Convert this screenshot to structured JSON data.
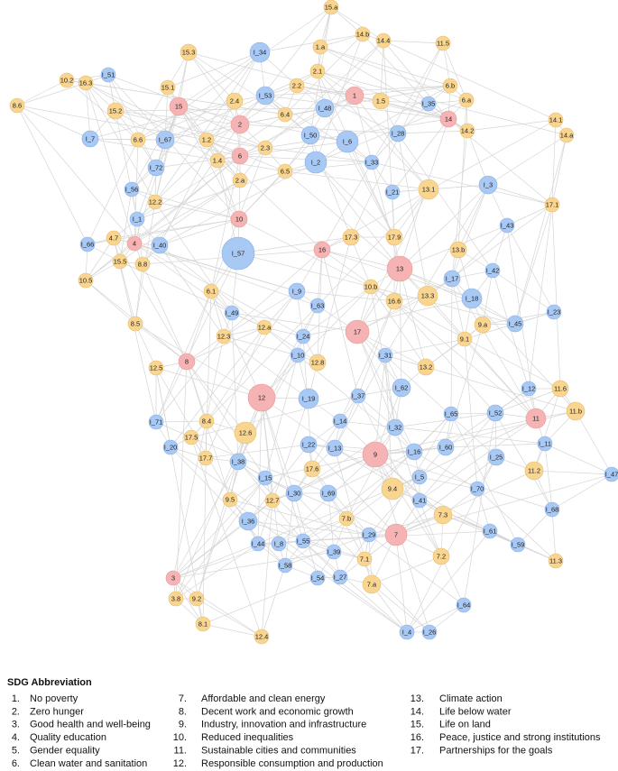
{
  "nodes": [
    {
      "label": "15.a"
    },
    {
      "label": "14.b"
    },
    {
      "label": "14.4"
    },
    {
      "label": "11.5"
    },
    {
      "label": "1.a"
    },
    {
      "label": "15.3"
    },
    {
      "label": "I_34"
    },
    {
      "label": "I_51"
    },
    {
      "label": "10.2"
    },
    {
      "label": "16.3"
    },
    {
      "label": "2.1"
    },
    {
      "label": "2.2"
    },
    {
      "label": "6.b"
    },
    {
      "label": "1"
    },
    {
      "label": "1.5"
    },
    {
      "label": "15.1"
    },
    {
      "label": "I_53"
    },
    {
      "label": "2.4"
    },
    {
      "label": "I_35"
    },
    {
      "label": "6.a"
    },
    {
      "label": "8.6"
    },
    {
      "label": "15.2"
    },
    {
      "label": "15"
    },
    {
      "label": "I_48"
    },
    {
      "label": "6.4"
    },
    {
      "label": "14"
    },
    {
      "label": "14.2"
    },
    {
      "label": "14.1"
    },
    {
      "label": "2"
    },
    {
      "label": "I_7"
    },
    {
      "label": "6.6"
    },
    {
      "label": "I_67"
    },
    {
      "label": "1.2"
    },
    {
      "label": "I_50"
    },
    {
      "label": "I_6"
    },
    {
      "label": "I_28"
    },
    {
      "label": "14.a"
    },
    {
      "label": "2.3"
    },
    {
      "label": "6"
    },
    {
      "label": "I_2"
    },
    {
      "label": "I_33"
    },
    {
      "label": "6.5"
    },
    {
      "label": "1.4"
    },
    {
      "label": "I_72"
    },
    {
      "label": "2.a"
    },
    {
      "label": "13.1"
    },
    {
      "label": "I_3"
    },
    {
      "label": "I_56"
    },
    {
      "label": "12.2"
    },
    {
      "label": "I_21"
    },
    {
      "label": "17.1"
    },
    {
      "label": "I_1"
    },
    {
      "label": "10"
    },
    {
      "label": "I_43"
    },
    {
      "label": "4.7"
    },
    {
      "label": "4"
    },
    {
      "label": "I_66"
    },
    {
      "label": "I_40"
    },
    {
      "label": "17.3"
    },
    {
      "label": "17.9"
    },
    {
      "label": "I_57"
    },
    {
      "label": "16"
    },
    {
      "label": "13.b"
    },
    {
      "label": "15.5"
    },
    {
      "label": "8.8"
    },
    {
      "label": "13"
    },
    {
      "label": "I_42"
    },
    {
      "label": "10.5"
    },
    {
      "label": "I_17"
    },
    {
      "label": "10.b"
    },
    {
      "label": "I_9"
    },
    {
      "label": "6.1"
    },
    {
      "label": "16.6"
    },
    {
      "label": "13.3"
    },
    {
      "label": "I_18"
    },
    {
      "label": "I_63"
    },
    {
      "label": "I_49"
    },
    {
      "label": "12.a"
    },
    {
      "label": "8.5"
    },
    {
      "label": "I_23"
    },
    {
      "label": "9.a"
    },
    {
      "label": "I_45"
    },
    {
      "label": "17"
    },
    {
      "label": "I_24"
    },
    {
      "label": "12.3"
    },
    {
      "label": "9.1"
    },
    {
      "label": "I_31"
    },
    {
      "label": "I_10"
    },
    {
      "label": "12.8"
    },
    {
      "label": "8"
    },
    {
      "label": "12.5"
    },
    {
      "label": "13.2"
    },
    {
      "label": "I_62"
    },
    {
      "label": "I_37"
    },
    {
      "label": "I_12"
    },
    {
      "label": "11.6"
    },
    {
      "label": "12"
    },
    {
      "label": "I_19"
    },
    {
      "label": "11"
    },
    {
      "label": "11.b"
    },
    {
      "label": "I_65"
    },
    {
      "label": "I_52"
    },
    {
      "label": "I_71"
    },
    {
      "label": "8.4"
    },
    {
      "label": "I_14"
    },
    {
      "label": "I_32"
    },
    {
      "label": "12.6"
    },
    {
      "label": "17.5"
    },
    {
      "label": "I_20"
    },
    {
      "label": "I_22"
    },
    {
      "label": "I_13"
    },
    {
      "label": "9"
    },
    {
      "label": "I_16"
    },
    {
      "label": "I_60"
    },
    {
      "label": "I_11"
    },
    {
      "label": "17.7"
    },
    {
      "label": "I_38"
    },
    {
      "label": "17.6"
    },
    {
      "label": "I_25"
    },
    {
      "label": "11.2"
    },
    {
      "label": "I_15"
    },
    {
      "label": "I_5"
    },
    {
      "label": "I_47"
    },
    {
      "label": "9.4"
    },
    {
      "label": "I_70"
    },
    {
      "label": "I_30"
    },
    {
      "label": "I_69"
    },
    {
      "label": "12.7"
    },
    {
      "label": "9.5"
    },
    {
      "label": "I_41"
    },
    {
      "label": "7.b"
    },
    {
      "label": "I_68"
    },
    {
      "label": "7.3"
    },
    {
      "label": "I_36"
    },
    {
      "label": "I_29"
    },
    {
      "label": "7"
    },
    {
      "label": "I_61"
    },
    {
      "label": "I_44"
    },
    {
      "label": "I_8"
    },
    {
      "label": "I_55"
    },
    {
      "label": "I_59"
    },
    {
      "label": "I_39"
    },
    {
      "label": "7.1"
    },
    {
      "label": "7.2"
    },
    {
      "label": "11.3"
    },
    {
      "label": "3"
    },
    {
      "label": "I_58"
    },
    {
      "label": "I_54"
    },
    {
      "label": "I_27"
    },
    {
      "label": "7.a"
    },
    {
      "label": "3.8"
    },
    {
      "label": "9.2"
    },
    {
      "label": "I_64"
    },
    {
      "label": "8.1"
    },
    {
      "label": "I_4"
    },
    {
      "label": "I_26"
    },
    {
      "label": "12.4"
    }
  ],
  "legend": {
    "title": "SDG  Abbreviation",
    "items": [
      {
        "number": "1.",
        "name": "No poverty"
      },
      {
        "number": "2.",
        "name": "Zero hunger"
      },
      {
        "number": "3.",
        "name": "Good health and well-being"
      },
      {
        "number": "4.",
        "name": "Quality education"
      },
      {
        "number": "5.",
        "name": "Gender equality"
      },
      {
        "number": "6.",
        "name": "Clean water and sanitation"
      },
      {
        "number": "7.",
        "name": "Affordable and clean energy"
      },
      {
        "number": "8.",
        "name": "Decent work and economic growth"
      },
      {
        "number": "9.",
        "name": "Industry, innovation and infrastructure"
      },
      {
        "number": "10.",
        "name": "Reduced inequalities"
      },
      {
        "number": "11.",
        "name": "Sustainable cities and communities"
      },
      {
        "number": "12.",
        "name": "Responsible consumption and production"
      },
      {
        "number": "13.",
        "name": "Climate action"
      },
      {
        "number": "14.",
        "name": "Life below water"
      },
      {
        "number": "15.",
        "name": "Life on land"
      },
      {
        "number": "16.",
        "name": "Peace, justice and strong institutions"
      },
      {
        "number": "17.",
        "name": "Partnerships for the goals"
      }
    ]
  }
}
